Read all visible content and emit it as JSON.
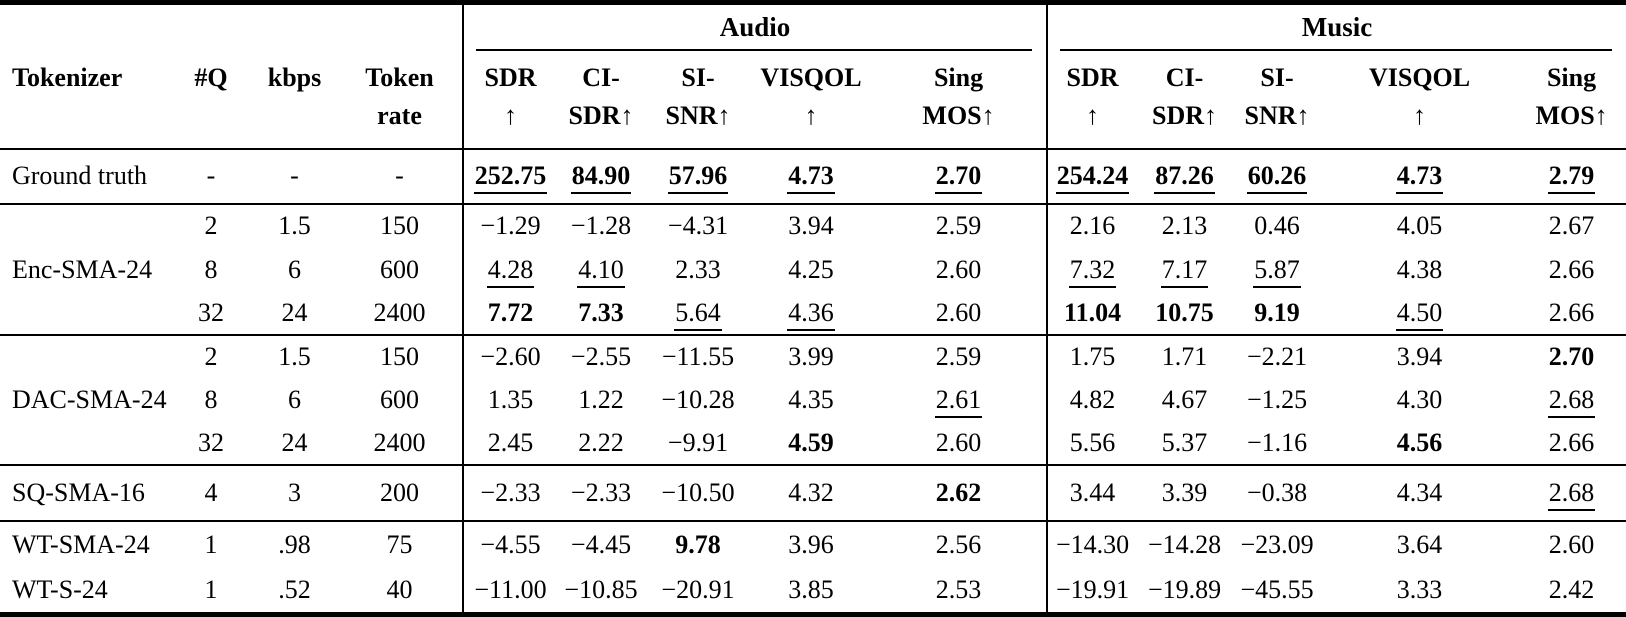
{
  "table": {
    "headers": {
      "tokenizer": "Tokenizer",
      "q": "#Q",
      "kbps": "kbps",
      "token_rate_line1": "Token",
      "token_rate_line2": "rate"
    },
    "groups": [
      {
        "label": "Audio"
      },
      {
        "label": "Music"
      }
    ],
    "metrics": [
      {
        "line1": "SDR",
        "line2": "↑"
      },
      {
        "line1": "CI-",
        "line2": "SDR↑"
      },
      {
        "line1": "SI-",
        "line2": "SNR↑"
      },
      {
        "line1": "VISQOL",
        "line2": "↑"
      },
      {
        "line1": "Sing",
        "line2": "MOS↑"
      }
    ],
    "sections": [
      {
        "tokenizer": "Ground truth",
        "rows": [
          {
            "q": "-",
            "kbps": "-",
            "rate": "-",
            "audio": [
              [
                "252.75",
                "bu"
              ],
              [
                "84.90",
                "bu"
              ],
              [
                "57.96",
                "bu"
              ],
              [
                "4.73",
                "bu"
              ],
              [
                "2.70",
                "bu"
              ]
            ],
            "music": [
              [
                "254.24",
                "bu"
              ],
              [
                "87.26",
                "bu"
              ],
              [
                "60.26",
                "bu"
              ],
              [
                "4.73",
                "bu"
              ],
              [
                "2.79",
                "bu"
              ]
            ]
          }
        ]
      },
      {
        "tokenizer": "Enc-SMA-24",
        "rows": [
          {
            "q": "2",
            "kbps": "1.5",
            "rate": "150",
            "audio": [
              [
                "−1.29",
                ""
              ],
              [
                "−1.28",
                ""
              ],
              [
                "−4.31",
                ""
              ],
              [
                "3.94",
                ""
              ],
              [
                "2.59",
                ""
              ]
            ],
            "music": [
              [
                "2.16",
                ""
              ],
              [
                "2.13",
                ""
              ],
              [
                "0.46",
                ""
              ],
              [
                "4.05",
                ""
              ],
              [
                "2.67",
                ""
              ]
            ]
          },
          {
            "q": "8",
            "kbps": "6",
            "rate": "600",
            "audio": [
              [
                "4.28",
                "u"
              ],
              [
                "4.10",
                "u"
              ],
              [
                "2.33",
                ""
              ],
              [
                "4.25",
                ""
              ],
              [
                "2.60",
                ""
              ]
            ],
            "music": [
              [
                "7.32",
                "u"
              ],
              [
                "7.17",
                "u"
              ],
              [
                "5.87",
                "u"
              ],
              [
                "4.38",
                ""
              ],
              [
                "2.66",
                ""
              ]
            ]
          },
          {
            "q": "32",
            "kbps": "24",
            "rate": "2400",
            "audio": [
              [
                "7.72",
                "b"
              ],
              [
                "7.33",
                "b"
              ],
              [
                "5.64",
                "u"
              ],
              [
                "4.36",
                "u"
              ],
              [
                "2.60",
                ""
              ]
            ],
            "music": [
              [
                "11.04",
                "b"
              ],
              [
                "10.75",
                "b"
              ],
              [
                "9.19",
                "b"
              ],
              [
                "4.50",
                "u"
              ],
              [
                "2.66",
                ""
              ]
            ]
          }
        ]
      },
      {
        "tokenizer": "DAC-SMA-24",
        "rows": [
          {
            "q": "2",
            "kbps": "1.5",
            "rate": "150",
            "audio": [
              [
                "−2.60",
                ""
              ],
              [
                "−2.55",
                ""
              ],
              [
                "−11.55",
                ""
              ],
              [
                "3.99",
                ""
              ],
              [
                "2.59",
                ""
              ]
            ],
            "music": [
              [
                "1.75",
                ""
              ],
              [
                "1.71",
                ""
              ],
              [
                "−2.21",
                ""
              ],
              [
                "3.94",
                ""
              ],
              [
                "2.70",
                "b"
              ]
            ]
          },
          {
            "q": "8",
            "kbps": "6",
            "rate": "600",
            "audio": [
              [
                "1.35",
                ""
              ],
              [
                "1.22",
                ""
              ],
              [
                "−10.28",
                ""
              ],
              [
                "4.35",
                ""
              ],
              [
                "2.61",
                "u"
              ]
            ],
            "music": [
              [
                "4.82",
                ""
              ],
              [
                "4.67",
                ""
              ],
              [
                "−1.25",
                ""
              ],
              [
                "4.30",
                ""
              ],
              [
                "2.68",
                "u"
              ]
            ]
          },
          {
            "q": "32",
            "kbps": "24",
            "rate": "2400",
            "audio": [
              [
                "2.45",
                ""
              ],
              [
                "2.22",
                ""
              ],
              [
                "−9.91",
                ""
              ],
              [
                "4.59",
                "b"
              ],
              [
                "2.60",
                ""
              ]
            ],
            "music": [
              [
                "5.56",
                ""
              ],
              [
                "5.37",
                ""
              ],
              [
                "−1.16",
                ""
              ],
              [
                "4.56",
                "b"
              ],
              [
                "2.66",
                ""
              ]
            ]
          }
        ]
      },
      {
        "tokenizer": "SQ-SMA-16",
        "rows": [
          {
            "q": "4",
            "kbps": "3",
            "rate": "200",
            "audio": [
              [
                "−2.33",
                ""
              ],
              [
                "−2.33",
                ""
              ],
              [
                "−10.50",
                ""
              ],
              [
                "4.32",
                ""
              ],
              [
                "2.62",
                "b"
              ]
            ],
            "music": [
              [
                "3.44",
                ""
              ],
              [
                "3.39",
                ""
              ],
              [
                "−0.38",
                ""
              ],
              [
                "4.34",
                ""
              ],
              [
                "2.68",
                "u"
              ]
            ]
          }
        ]
      },
      {
        "tokenizer": null,
        "rows": [
          {
            "tokenizer": "WT-SMA-24",
            "q": "1",
            "kbps": ".98",
            "rate": "75",
            "audio": [
              [
                "−4.55",
                ""
              ],
              [
                "−4.45",
                ""
              ],
              [
                "9.78",
                "b"
              ],
              [
                "3.96",
                ""
              ],
              [
                "2.56",
                ""
              ]
            ],
            "music": [
              [
                "−14.30",
                ""
              ],
              [
                "−14.28",
                ""
              ],
              [
                "−23.09",
                ""
              ],
              [
                "3.64",
                ""
              ],
              [
                "2.60",
                ""
              ]
            ]
          },
          {
            "tokenizer": "WT-S-24",
            "q": "1",
            "kbps": ".52",
            "rate": "40",
            "audio": [
              [
                "−11.00",
                ""
              ],
              [
                "−10.85",
                ""
              ],
              [
                "−20.91",
                ""
              ],
              [
                "3.85",
                ""
              ],
              [
                "2.53",
                ""
              ]
            ],
            "music": [
              [
                "−19.91",
                ""
              ],
              [
                "−19.89",
                ""
              ],
              [
                "−45.55",
                ""
              ],
              [
                "3.33",
                ""
              ],
              [
                "2.42",
                ""
              ]
            ]
          }
        ]
      }
    ]
  }
}
